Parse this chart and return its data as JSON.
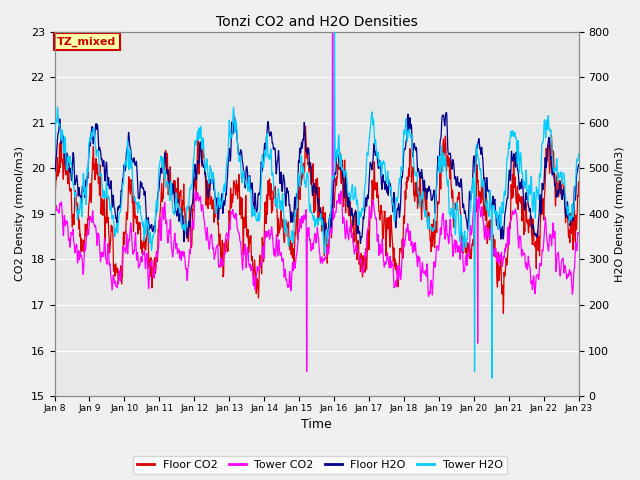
{
  "title": "Tonzi CO2 and H2O Densities",
  "xlabel": "Time",
  "ylabel_left": "CO2 Density (mmol/m3)",
  "ylabel_right": "H2O Density (mmol/m3)",
  "ylim_left": [
    15.0,
    23.0
  ],
  "ylim_right": [
    0,
    800
  ],
  "annotation_text": "TZ_mixed",
  "annotation_color": "#cc0000",
  "annotation_bg": "#ffffcc",
  "annotation_border": "#cc0000",
  "legend_entries": [
    "Floor CO2",
    "Tower CO2",
    "Floor H2O",
    "Tower H2O"
  ],
  "legend_colors": [
    "#dd0000",
    "#ff00ff",
    "#00008b",
    "#00ccff"
  ],
  "colors": {
    "floor_co2": "#dd0000",
    "tower_co2": "#ff00ff",
    "floor_h2o": "#00008b",
    "tower_h2o": "#00ccff"
  },
  "background_color": "#f0f0f0",
  "plot_bg": "#e8e8e8",
  "grid_color": "#ffffff",
  "tick_labels": [
    "Jan 8",
    "Jan 9",
    "Jan 10",
    "Jan 11",
    "Jan 12",
    "Jan 13",
    "Jan 14",
    "Jan 15",
    "Jan 16",
    "Jan 17",
    "Jan 18",
    "Jan 19",
    "Jan 20",
    "Jan 21",
    "Jan 22",
    "Jan 23"
  ],
  "n_points": 4000,
  "seed": 7
}
